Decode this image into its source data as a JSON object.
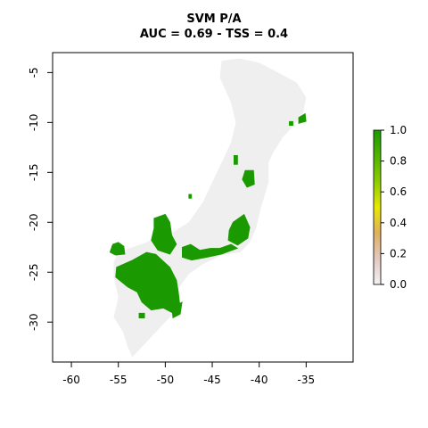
{
  "title": "SVM P/A",
  "subtitle": "AUC = 0.69 - TSS = 0.4",
  "colors": {
    "presence": "#1a9a00",
    "background_land": "#efefef",
    "frame": "#000000"
  },
  "x_axis": {
    "ticks": [
      "-60",
      "-55",
      "-50",
      "-45",
      "-40",
      "-35"
    ]
  },
  "y_axis": {
    "ticks": [
      "-5",
      "-10",
      "-15",
      "-20",
      "-25",
      "-30"
    ]
  },
  "legend": {
    "ticks": [
      "1.0",
      "0.8",
      "0.6",
      "0.4",
      "0.2",
      "0.0"
    ],
    "gradient": [
      "#1a9a00",
      "#4fb500",
      "#8ccd00",
      "#e8e800",
      "#e0b060",
      "#e2c8c0",
      "#f2f2f2"
    ]
  },
  "chart_data": {
    "type": "heatmap",
    "title": "SVM P/A",
    "subtitle": "AUC = 0.69 - TSS = 0.4",
    "xlim": [
      -62,
      -30
    ],
    "ylim": [
      -34,
      -3
    ],
    "value_range": [
      0,
      1
    ],
    "land_outline": [
      [
        -53.5,
        -33.5
      ],
      [
        -52.5,
        -32.5
      ],
      [
        -51.5,
        -31.5
      ],
      [
        -50.5,
        -30.5
      ],
      [
        -49.5,
        -29.5
      ],
      [
        -48.5,
        -28.5
      ],
      [
        -48.8,
        -27.5
      ],
      [
        -48.5,
        -26.5
      ],
      [
        -47.5,
        -25.2
      ],
      [
        -46,
        -24.2
      ],
      [
        -44,
        -23.3
      ],
      [
        -42,
        -23
      ],
      [
        -41,
        -22
      ],
      [
        -40.3,
        -20.5
      ],
      [
        -39.8,
        -18.5
      ],
      [
        -39,
        -16
      ],
      [
        -39,
        -14
      ],
      [
        -38.5,
        -13
      ],
      [
        -37.5,
        -11.5
      ],
      [
        -36.5,
        -10.5
      ],
      [
        -35.3,
        -9
      ],
      [
        -35,
        -7.5
      ],
      [
        -36,
        -6
      ],
      [
        -38,
        -5
      ],
      [
        -40,
        -4
      ],
      [
        -42,
        -3.6
      ],
      [
        -44,
        -3.8
      ],
      [
        -44.2,
        -5.5
      ],
      [
        -43,
        -8
      ],
      [
        -42.5,
        -10
      ],
      [
        -43,
        -12
      ],
      [
        -44,
        -14
      ],
      [
        -45,
        -16
      ],
      [
        -46,
        -18
      ],
      [
        -47.5,
        -20
      ],
      [
        -49.5,
        -21.2
      ],
      [
        -51,
        -21.5
      ],
      [
        -52,
        -22
      ],
      [
        -53.5,
        -22.5
      ],
      [
        -55,
        -23
      ],
      [
        -55.5,
        -24
      ],
      [
        -55.5,
        -25.5
      ],
      [
        -55,
        -27.5
      ],
      [
        -55.5,
        -29.5
      ],
      [
        -54.5,
        -31
      ],
      [
        -54,
        -32.5
      ]
    ],
    "presence_patches": [
      {
        "label": "south-west block",
        "coords": [
          [
            -55.2,
            -24.5
          ],
          [
            -53.5,
            -23.8
          ],
          [
            -52,
            -23
          ],
          [
            -51,
            -23.2
          ],
          [
            -49.5,
            -24.5
          ],
          [
            -48.8,
            -25.8
          ],
          [
            -48.6,
            -27
          ],
          [
            -48.4,
            -28.6
          ],
          [
            -49,
            -29.2
          ],
          [
            -50.2,
            -28.6
          ],
          [
            -51.5,
            -28.8
          ],
          [
            -52.5,
            -28
          ],
          [
            -53,
            -27
          ],
          [
            -54,
            -26.5
          ],
          [
            -55.3,
            -25.5
          ]
        ]
      },
      {
        "label": "south tail",
        "coords": [
          [
            -49.3,
            -28.5
          ],
          [
            -48.2,
            -28
          ],
          [
            -48.4,
            -29.2
          ],
          [
            -49.2,
            -29.6
          ]
        ]
      },
      {
        "label": "south spot",
        "coords": [
          [
            -52.8,
            -29.1
          ],
          [
            -52.2,
            -29.1
          ],
          [
            -52.2,
            -29.6
          ],
          [
            -52.8,
            -29.6
          ]
        ]
      },
      {
        "label": "far west",
        "coords": [
          [
            -55.6,
            -22.2
          ],
          [
            -55,
            -22
          ],
          [
            -54.4,
            -22.4
          ],
          [
            -54.3,
            -23.2
          ],
          [
            -55.3,
            -23.3
          ],
          [
            -55.9,
            -23
          ]
        ]
      },
      {
        "label": "west spot",
        "coords": [
          [
            -55.7,
            -22.4
          ],
          [
            -55.4,
            -22.4
          ],
          [
            -55.4,
            -22.8
          ],
          [
            -55.7,
            -22.8
          ]
        ]
      },
      {
        "label": "central north",
        "coords": [
          [
            -51.2,
            -19.6
          ],
          [
            -50,
            -19.2
          ],
          [
            -49.5,
            -20
          ],
          [
            -49.3,
            -21.3
          ],
          [
            -48.8,
            -22.2
          ],
          [
            -49.5,
            -23.2
          ],
          [
            -50.8,
            -22.8
          ],
          [
            -51.5,
            -21.8
          ],
          [
            -51.2,
            -20.6
          ]
        ]
      },
      {
        "label": "central east",
        "coords": [
          [
            -48.2,
            -22.5
          ],
          [
            -47.3,
            -22.2
          ],
          [
            -46.3,
            -22.8
          ],
          [
            -45.2,
            -22.6
          ],
          [
            -44.2,
            -22.6
          ],
          [
            -43,
            -22.2
          ],
          [
            -42.3,
            -22.6
          ],
          [
            -44,
            -23.2
          ],
          [
            -45.5,
            -23.5
          ],
          [
            -47.2,
            -23.8
          ],
          [
            -48.2,
            -23.5
          ]
        ]
      },
      {
        "label": "east spine",
        "coords": [
          [
            -42.8,
            -20
          ],
          [
            -41.6,
            -19.2
          ],
          [
            -41,
            -20.5
          ],
          [
            -41.2,
            -21.6
          ],
          [
            -42.3,
            -22.3
          ],
          [
            -43.3,
            -21.8
          ],
          [
            -43.2,
            -20.8
          ]
        ]
      },
      {
        "label": "north-east interior",
        "coords": [
          [
            -41.5,
            -14.8
          ],
          [
            -40.6,
            -14.8
          ],
          [
            -40.5,
            -16.2
          ],
          [
            -41.3,
            -16.5
          ],
          [
            -41.8,
            -15.7
          ]
        ]
      },
      {
        "label": "north-east spots",
        "coords": [
          [
            -42.7,
            -13.3
          ],
          [
            -42.3,
            -13.3
          ],
          [
            -42.3,
            -14.2
          ],
          [
            -42.7,
            -14.2
          ]
        ]
      },
      {
        "label": "coast tip",
        "coords": [
          [
            -35.8,
            -9.5
          ],
          [
            -35.1,
            -9.1
          ],
          [
            -35,
            -9.9
          ],
          [
            -35.8,
            -10.1
          ]
        ]
      },
      {
        "label": "coast spot",
        "coords": [
          [
            -36.8,
            -9.9
          ],
          [
            -36.4,
            -9.9
          ],
          [
            -36.4,
            -10.3
          ],
          [
            -36.8,
            -10.3
          ]
        ]
      },
      {
        "label": "mid spot",
        "coords": [
          [
            -47.5,
            -17.2
          ],
          [
            -47.2,
            -17.2
          ],
          [
            -47.2,
            -17.6
          ],
          [
            -47.5,
            -17.6
          ]
        ]
      }
    ]
  }
}
